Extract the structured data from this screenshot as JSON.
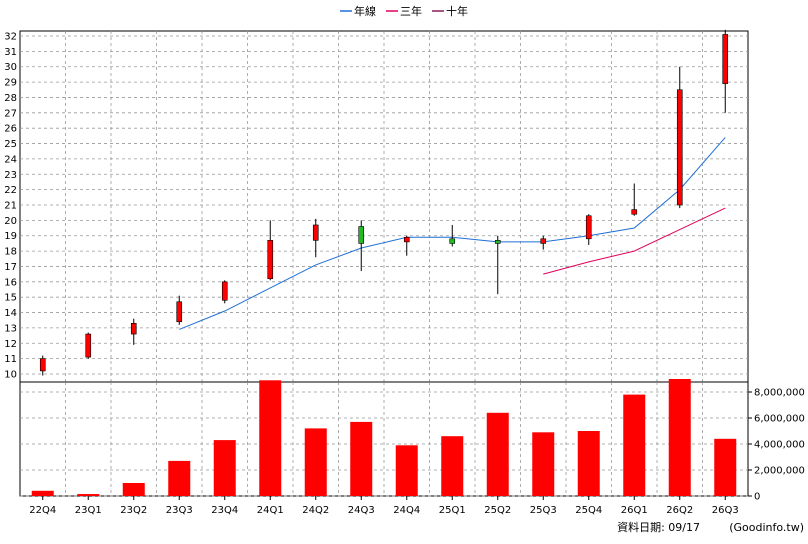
{
  "chart_data": {
    "type": "candlestick",
    "categories": [
      "22Q4",
      "23Q1",
      "23Q2",
      "23Q3",
      "23Q4",
      "24Q1",
      "24Q2",
      "24Q3",
      "24Q4",
      "25Q1",
      "25Q2",
      "25Q3",
      "25Q4",
      "26Q1",
      "26Q2",
      "26Q3"
    ],
    "candles": [
      {
        "open": 10.2,
        "close": 11.0,
        "high": 11.2,
        "low": 9.9
      },
      {
        "open": 11.1,
        "close": 12.6,
        "high": 12.7,
        "low": 11.0
      },
      {
        "open": 12.6,
        "close": 13.3,
        "high": 13.6,
        "low": 11.9
      },
      {
        "open": 13.4,
        "close": 14.7,
        "high": 15.1,
        "low": 13.2
      },
      {
        "open": 14.8,
        "close": 16.0,
        "high": 16.1,
        "low": 14.6
      },
      {
        "open": 16.2,
        "close": 18.7,
        "high": 20.0,
        "low": 16.1
      },
      {
        "open": 18.7,
        "close": 19.7,
        "high": 20.1,
        "low": 17.6
      },
      {
        "open": 19.6,
        "close": 18.5,
        "high": 20.0,
        "low": 16.7
      },
      {
        "open": 18.6,
        "close": 18.9,
        "high": 19.0,
        "low": 17.7
      },
      {
        "open": 18.8,
        "close": 18.5,
        "high": 19.7,
        "low": 18.3
      },
      {
        "open": 18.7,
        "close": 18.5,
        "high": 19.0,
        "low": 15.2
      },
      {
        "open": 18.5,
        "close": 18.8,
        "high": 19.0,
        "low": 18.1
      },
      {
        "open": 18.8,
        "close": 20.3,
        "high": 20.4,
        "low": 18.4
      },
      {
        "open": 20.4,
        "close": 20.7,
        "high": 22.4,
        "low": 20.3
      },
      {
        "open": 21.0,
        "close": 28.5,
        "high": 30.0,
        "low": 20.8
      },
      {
        "open": 28.9,
        "close": 32.1,
        "high": 32.4,
        "low": 27.0
      }
    ],
    "series": [
      {
        "name": "年線",
        "color": "#1f6fd6",
        "values": [
          null,
          null,
          null,
          12.9,
          14.1,
          15.6,
          17.1,
          18.2,
          18.9,
          18.9,
          18.6,
          18.6,
          19.0,
          19.5,
          22.0,
          25.4
        ]
      },
      {
        "name": "三年",
        "color": "#e0005a",
        "values": [
          null,
          null,
          null,
          null,
          null,
          null,
          null,
          null,
          null,
          null,
          null,
          16.5,
          17.3,
          18.0,
          19.4,
          20.8
        ]
      },
      {
        "name": "十年",
        "color": "#8a1a5a",
        "values": [
          null,
          null,
          null,
          null,
          null,
          null,
          null,
          null,
          null,
          null,
          null,
          null,
          null,
          null,
          null,
          null
        ]
      }
    ],
    "volume": [
      400000,
      150000,
      1000000,
      2700000,
      4300000,
      8900000,
      5200000,
      5700000,
      3900000,
      4600000,
      6400000,
      4900000,
      5000000,
      7800000,
      9000000,
      4400000
    ],
    "price_ylim": [
      10,
      32
    ],
    "price_yticks": [
      "10",
      "11",
      "12",
      "13",
      "14",
      "15",
      "16",
      "17",
      "18",
      "19",
      "20",
      "21",
      "22",
      "23",
      "24",
      "25",
      "26",
      "27",
      "28",
      "29",
      "30",
      "31",
      "32"
    ],
    "volume_ylim": [
      0,
      8000000
    ],
    "volume_yticks": [
      "0",
      "2,000,000",
      "4,000,000",
      "6,000,000",
      "8,000,000"
    ],
    "grid": true,
    "legend_position": "top-center",
    "colors": {
      "up": "#ff0000",
      "down": "#22bb22",
      "volume": "#ff0000",
      "grid": "#999999"
    }
  },
  "footer": {
    "date_label": "資料日期: 09/17",
    "source": "(Goodinfo.tw)"
  }
}
